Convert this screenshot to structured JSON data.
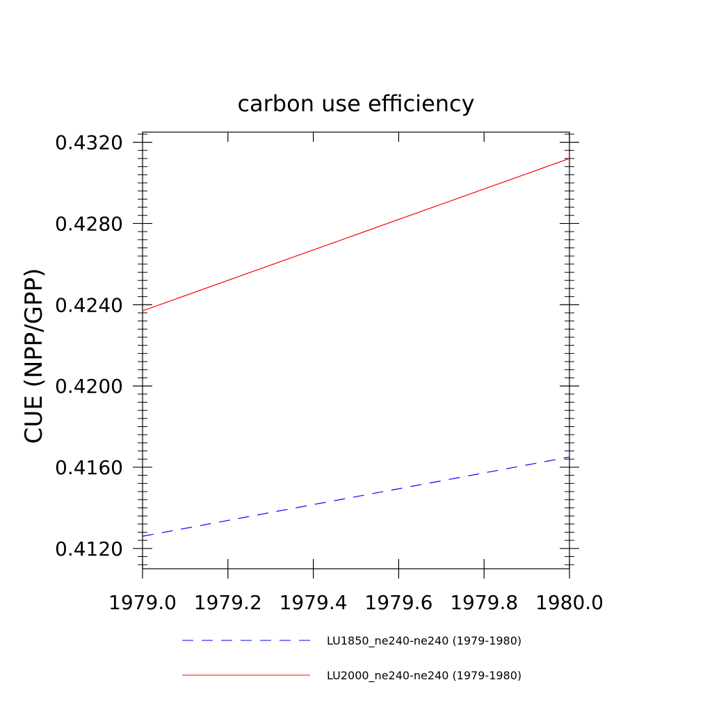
{
  "chart_data": {
    "type": "line",
    "title": "carbon use efficiency",
    "xlabel": "",
    "ylabel": "CUE  (NPP/GPP)",
    "xlim": [
      1979.0,
      1980.0
    ],
    "ylim": [
      0.411,
      0.4325
    ],
    "x_ticks": [
      "1979.0",
      "1979.2",
      "1979.4",
      "1979.6",
      "1979.8",
      "1980.0"
    ],
    "y_ticks": [
      "0.4120",
      "0.4160",
      "0.4200",
      "0.4240",
      "0.4280",
      "0.4320"
    ],
    "grid": false,
    "legend_position": "bottom",
    "series": [
      {
        "name": "LU1850_ne240-ne240 (1979-1980)",
        "color": "#0000ff",
        "style": "dashed",
        "x": [
          1979.0,
          1980.0
        ],
        "values": [
          0.4126,
          0.4165
        ]
      },
      {
        "name": "LU2000_ne240-ne240 (1979-1980)",
        "color": "#ff0000",
        "style": "solid",
        "x": [
          1979.0,
          1980.0
        ],
        "values": [
          0.4237,
          0.4312
        ]
      }
    ]
  }
}
